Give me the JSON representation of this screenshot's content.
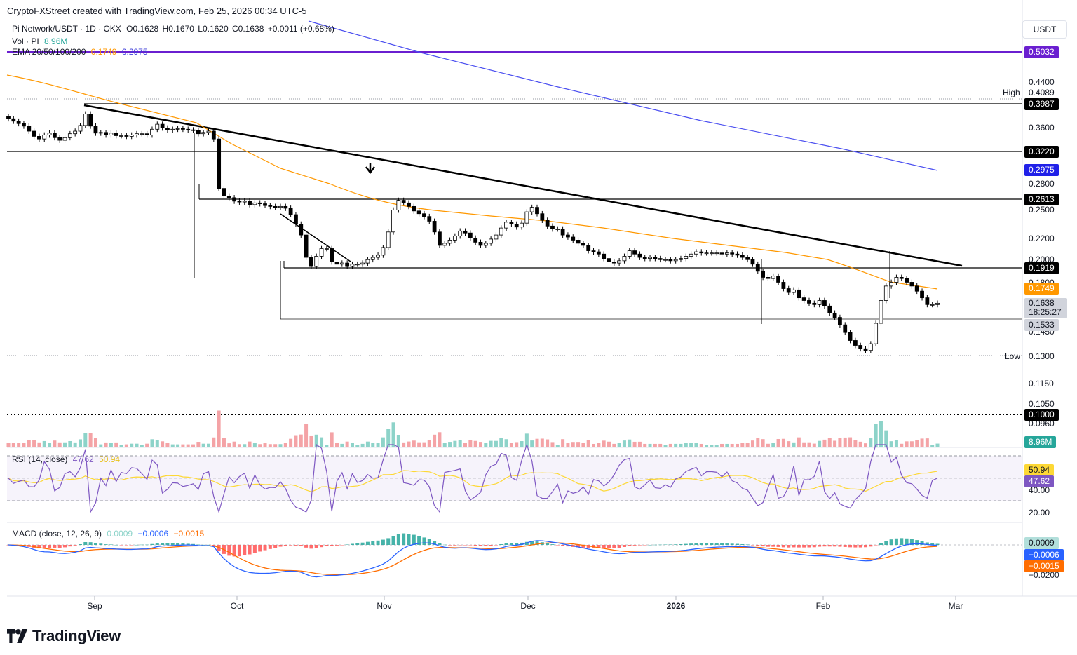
{
  "header": {
    "attribution": "CryptoFXStreet created with TradingView.com, Feb 25, 2026 00:34 UTC-5",
    "currency_button": "USDT"
  },
  "legend": {
    "symbol_line": "Pi Network/USDT · 1D · OKX",
    "o": "O0.1628",
    "h": "H0.1670",
    "l": "L0.1620",
    "c": "C0.1638",
    "chg": "+0.0011 (+0.68%)",
    "vol_label": "Vol · PI",
    "vol_value": "8.96M",
    "ema_label": "EMA 20/50/100/200",
    "ema_a": "0.1749",
    "ema_b": "0.2975",
    "rsi_label": "RSI (14, close)",
    "rsi_a": "47.62",
    "rsi_b": "50.94",
    "macd_label": "MACD (close, 12, 26, 9)",
    "macd_a": "0.0009",
    "macd_b": "−0.0006",
    "macd_c": "−0.0015"
  },
  "price_axis": {
    "ticks": [
      "0.4400",
      "0.3600",
      "0.2800",
      "0.2500",
      "0.2200",
      "0.2000",
      "0.1800",
      "0.1450",
      "0.1150",
      "0.1050",
      "0.0960"
    ],
    "high_label": "High",
    "high_value": "0.4089",
    "low_label": "Low",
    "low_value": "0.1300"
  },
  "price_tags": {
    "t5032": "0.5032",
    "t3987": "0.3987",
    "t3220": "0.3220",
    "t2975": "0.2975",
    "t2613": "0.2613",
    "t1919": "0.1919",
    "t1749": "0.1749",
    "current": "0.1638",
    "countdown": "18:25:27",
    "t1533": "0.1533",
    "t1000": "0.1000",
    "vol": "8.96M"
  },
  "rsi_axis": {
    "ticks": [
      "40.00",
      "20.00"
    ],
    "tag_a": "50.94",
    "tag_b": "47.62"
  },
  "macd_axis": {
    "ticks": [
      "−0.0200"
    ],
    "tag_a": "0.0009",
    "tag_b": "−0.0006",
    "tag_c": "−0.0015"
  },
  "time_axis": [
    "Sep",
    "Oct",
    "Nov",
    "Dec",
    "2026",
    "Feb",
    "Mar"
  ],
  "footer": {
    "brand": "TradingView"
  },
  "colors": {
    "up": "#089981",
    "down": "#000000",
    "vol_up": "#8dd3c9",
    "vol_down": "#f4a3a6",
    "ema_orange": "#ff9800",
    "ema_blue": "#4a4ef0",
    "purple_line": "#7b2cf5",
    "rsi": "#7e57c2",
    "rsi_ma": "#fdd835",
    "macd_line": "#2962ff",
    "signal_line": "#ff6d00"
  },
  "chart_data": {
    "type": "candlestick",
    "symbol": "Pi Network/USDT",
    "interval": "1D",
    "exchange": "OKX",
    "horizontal_levels": [
      0.5032,
      0.3987,
      0.322,
      0.2613,
      0.1919,
      0.1533,
      0.1
    ],
    "high": 0.4089,
    "low": 0.13,
    "last": {
      "open": 0.1628,
      "high": 0.167,
      "low": 0.162,
      "close": 0.1638,
      "change": 0.0011,
      "change_pct": 0.68
    },
    "ema": {
      "ema_50": 0.1749,
      "ema_200": 0.2975
    },
    "volume_last": "8.96M",
    "rsi": {
      "value": 47.62,
      "ma": 50.94
    },
    "macd": {
      "histogram": 0.0009,
      "macd": -0.0006,
      "signal": -0.0015
    },
    "x_labels": [
      "Sep",
      "Oct",
      "Nov",
      "Dec",
      "2026",
      "Feb",
      "Mar"
    ],
    "close_path": [
      0.372,
      0.368,
      0.364,
      0.36,
      0.352,
      0.344,
      0.34,
      0.346,
      0.349,
      0.342,
      0.338,
      0.342,
      0.348,
      0.352,
      0.361,
      0.38,
      0.36,
      0.349,
      0.35,
      0.346,
      0.349,
      0.345,
      0.345,
      0.344,
      0.346,
      0.348,
      0.348,
      0.346,
      0.355,
      0.363,
      0.357,
      0.354,
      0.355,
      0.356,
      0.355,
      0.354,
      0.353,
      0.348,
      0.35,
      0.352,
      0.34,
      0.273,
      0.264,
      0.262,
      0.258,
      0.257,
      0.258,
      0.254,
      0.256,
      0.255,
      0.253,
      0.252,
      0.251,
      0.252,
      0.25,
      0.243,
      0.233,
      0.222,
      0.201,
      0.193,
      0.202,
      0.209,
      0.209,
      0.197,
      0.195,
      0.196,
      0.193,
      0.195,
      0.195,
      0.196,
      0.199,
      0.201,
      0.203,
      0.21,
      0.225,
      0.248,
      0.259,
      0.256,
      0.252,
      0.247,
      0.244,
      0.241,
      0.236,
      0.225,
      0.212,
      0.214,
      0.217,
      0.221,
      0.226,
      0.224,
      0.219,
      0.215,
      0.212,
      0.214,
      0.218,
      0.222,
      0.229,
      0.235,
      0.233,
      0.23,
      0.234,
      0.246,
      0.251,
      0.244,
      0.237,
      0.231,
      0.228,
      0.228,
      0.222,
      0.22,
      0.217,
      0.214,
      0.212,
      0.207,
      0.206,
      0.204,
      0.2,
      0.197,
      0.196,
      0.198,
      0.202,
      0.207,
      0.204,
      0.201,
      0.2,
      0.201,
      0.2,
      0.199,
      0.199,
      0.198,
      0.199,
      0.2,
      0.202,
      0.204,
      0.206,
      0.205,
      0.205,
      0.205,
      0.205,
      0.204,
      0.205,
      0.204,
      0.203,
      0.201,
      0.199,
      0.195,
      0.189,
      0.184,
      0.183,
      0.185,
      0.18,
      0.175,
      0.172,
      0.174,
      0.168,
      0.166,
      0.164,
      0.163,
      0.166,
      0.162,
      0.157,
      0.154,
      0.149,
      0.144,
      0.139,
      0.136,
      0.134,
      0.133,
      0.137,
      0.15,
      0.166,
      0.177,
      0.18,
      0.184,
      0.183,
      0.18,
      0.177,
      0.173,
      0.168,
      0.163,
      0.163,
      0.164
    ]
  }
}
